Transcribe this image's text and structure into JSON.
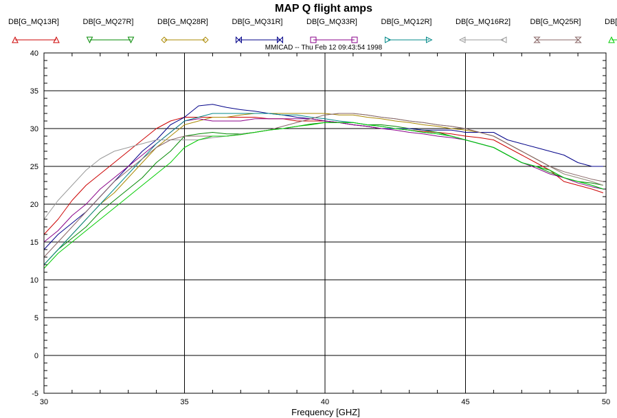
{
  "chart_data": {
    "type": "line",
    "title": "MAP Q flight amps",
    "subtitle": "MMICAD -- Thu Feb 12 09:43:54 1998",
    "xlabel": "Frequency [GHZ]",
    "ylabel": "",
    "xlim": [
      30,
      50
    ],
    "ylim": [
      -5,
      40
    ],
    "x_ticks": [
      "30",
      "35",
      "40",
      "45",
      "50"
    ],
    "y_ticks": [
      "-5",
      "0",
      "5",
      "10",
      "15",
      "20",
      "25",
      "30",
      "35",
      "40"
    ],
    "grid": true,
    "legend_position": "top",
    "series": [
      {
        "name": "DB[G_MQ13R]",
        "color": "#cc0000",
        "marker": "triangle-up",
        "x": [
          30,
          30.5,
          31,
          31.5,
          32,
          32.5,
          33,
          33.5,
          34,
          34.5,
          35,
          35.5,
          36,
          36.5,
          37,
          37.5,
          38,
          38.5,
          39,
          39.5,
          40,
          40.5,
          41,
          41.5,
          42,
          42.5,
          43,
          43.5,
          44,
          44.5,
          45,
          45.5,
          46,
          46.5,
          47,
          47.5,
          48,
          48.5,
          49,
          49.5,
          49.9
        ],
        "y": [
          16,
          18,
          20.5,
          22.5,
          24,
          25.5,
          27,
          28.5,
          30,
          31,
          31.5,
          31.5,
          31.5,
          31.5,
          31.5,
          31.5,
          31.3,
          31.3,
          31,
          31,
          31,
          30.8,
          30.5,
          30.3,
          30,
          30,
          29.8,
          29.6,
          29.5,
          29.3,
          29,
          28.8,
          28.5,
          27.5,
          26.5,
          25.5,
          24.5,
          23,
          22.5,
          22,
          21.5
        ]
      },
      {
        "name": "DB[G_MQ27R]",
        "color": "#008800",
        "marker": "triangle-down",
        "x": [
          30,
          30.5,
          31,
          31.5,
          32,
          32.5,
          33,
          33.5,
          34,
          34.5,
          35,
          35.5,
          36,
          36.5,
          37,
          37.5,
          38,
          38.5,
          39,
          39.5,
          40,
          40.5,
          41,
          41.5,
          42,
          42.5,
          43,
          43.5,
          44,
          44.5,
          45,
          45.5,
          46,
          46.5,
          47,
          47.5,
          48,
          48.5,
          49,
          49.5,
          49.9
        ],
        "y": [
          12,
          14,
          15.5,
          17,
          19,
          20.5,
          22,
          23.5,
          25.5,
          27,
          29,
          29.3,
          29.5,
          29.3,
          29.3,
          29.5,
          29.8,
          30,
          30.3,
          30.6,
          30.8,
          30.8,
          30.8,
          30.5,
          30.5,
          30.3,
          30,
          29.8,
          29.5,
          29,
          28.5,
          28,
          27.5,
          26.5,
          25.5,
          25,
          24.2,
          23.5,
          23,
          22.8,
          22.5
        ]
      },
      {
        "name": "DB[G_MQ28R]",
        "color": "#aa8800",
        "marker": "diamond",
        "x": [
          30,
          30.5,
          31,
          31.5,
          32,
          32.5,
          33,
          33.5,
          34,
          34.5,
          35,
          35.5,
          36,
          36.5,
          37,
          37.5,
          38,
          38.5,
          39,
          39.5,
          40,
          40.5,
          41,
          41.5,
          42,
          42.5,
          43,
          43.5,
          44,
          44.5,
          45,
          45.5,
          46,
          46.5,
          47,
          47.5,
          48,
          48.5,
          49,
          49.5,
          49.9
        ],
        "y": [
          12,
          14,
          16,
          18,
          20,
          21.5,
          23.5,
          25.5,
          27.5,
          29,
          30.5,
          31,
          31.5,
          31.5,
          31.8,
          32,
          32,
          32,
          32,
          32,
          32,
          31.8,
          31.8,
          31.5,
          31.3,
          31,
          30.8,
          30.5,
          30.3,
          30,
          29.8,
          29.5,
          29,
          28,
          27,
          26,
          25,
          24,
          23.5,
          23,
          22.5
        ]
      },
      {
        "name": "DB[G_MQ31R]",
        "color": "#000088",
        "marker": "bowtie",
        "x": [
          30,
          30.5,
          31,
          31.5,
          32,
          32.5,
          33,
          33.5,
          34,
          34.5,
          35,
          35.5,
          36,
          36.5,
          37,
          37.5,
          38,
          38.5,
          39,
          39.5,
          40,
          40.5,
          41,
          41.5,
          42,
          42.5,
          43,
          43.5,
          44,
          44.5,
          45,
          45.5,
          46,
          46.5,
          47,
          47.5,
          48,
          48.5,
          49,
          49.5,
          49.9
        ],
        "y": [
          14,
          16,
          17.5,
          19,
          21,
          23,
          25,
          27,
          28.5,
          30.5,
          31.5,
          33,
          33.2,
          32.8,
          32.5,
          32.3,
          32,
          31.8,
          31.5,
          31.3,
          31,
          30.8,
          30.5,
          30.3,
          30,
          30,
          30,
          29.8,
          29.8,
          29.8,
          29.5,
          29.5,
          29.5,
          28.5,
          28,
          27.5,
          27,
          26.5,
          25.5,
          25,
          25
        ]
      },
      {
        "name": "DB[G_MQ33R]",
        "color": "#880088",
        "marker": "square",
        "x": [
          30,
          30.5,
          31,
          31.5,
          32,
          32.5,
          33,
          33.5,
          34,
          34.5,
          35,
          35.5,
          36,
          36.5,
          37,
          37.5,
          38,
          38.5,
          39,
          39.5,
          40,
          40.5,
          41,
          41.5,
          42,
          42.5,
          43,
          43.5,
          44,
          44.5,
          45,
          45.5,
          46,
          46.5,
          47,
          47.5,
          48,
          48.5,
          49,
          49.5,
          49.9
        ],
        "y": [
          15,
          16.5,
          18.5,
          20,
          22,
          23.5,
          25,
          26.5,
          28,
          29.5,
          31,
          31.3,
          31,
          31,
          31,
          31.3,
          31.3,
          31.3,
          31.3,
          31.3,
          31,
          30.8,
          30.5,
          30.3,
          30,
          29.8,
          29.5,
          29.3,
          29,
          28.8,
          28.5,
          28,
          27.5,
          26.5,
          25.5,
          24.8,
          24,
          23.5,
          22.8,
          22.3,
          22
        ]
      },
      {
        "name": "DB[G_MQ12R]",
        "color": "#008888",
        "marker": "triangle-right",
        "x": [
          30,
          30.5,
          31,
          31.5,
          32,
          32.5,
          33,
          33.5,
          34,
          34.5,
          35,
          35.5,
          36,
          36.5,
          37,
          37.5,
          38,
          38.5,
          39,
          39.5,
          40,
          40.5,
          41,
          41.5,
          42,
          42.5,
          43,
          43.5,
          44,
          44.5,
          45,
          45.5,
          46,
          46.5,
          47,
          47.5,
          48,
          48.5,
          49,
          49.5,
          49.9
        ],
        "y": [
          12,
          14,
          16,
          18,
          20,
          22,
          24,
          26,
          28,
          29.5,
          31,
          31.5,
          32,
          32,
          32,
          32,
          32,
          31.8,
          31.8,
          31.5,
          31.3,
          31,
          30.8,
          30.5,
          30.3,
          30,
          29.8,
          29.5,
          29.3,
          29,
          28.5,
          28,
          27.5,
          26.5,
          25.5,
          25,
          24.5,
          23.5,
          23,
          22.5,
          22
        ]
      },
      {
        "name": "DB[G_MQ16R2]",
        "color": "#999999",
        "marker": "triangle-left",
        "x": [
          30,
          30.5,
          31,
          31.5,
          32,
          32.5,
          33,
          33.5,
          34,
          34.5,
          35,
          35.5,
          36,
          36.5,
          37,
          37.5,
          38,
          38.5,
          39,
          39.5,
          40,
          40.5,
          41,
          41.5,
          42,
          42.5,
          43,
          43.5,
          44,
          44.5,
          45,
          45.5,
          46,
          46.5,
          47,
          47.5,
          48,
          48.5,
          49,
          49.5,
          49.9
        ],
        "y": [
          18,
          20.5,
          22.5,
          24.5,
          26,
          27,
          27.5,
          28,
          28.5,
          28.5,
          28.5,
          28.5,
          28.8,
          29,
          29.3,
          29.5,
          29.8,
          30.3,
          30.8,
          31.3,
          31.8,
          32,
          32,
          31.8,
          31.5,
          31.3,
          31,
          30.8,
          30.5,
          30.3,
          30,
          29.5,
          29,
          28,
          27,
          26,
          25,
          24,
          23.5,
          23,
          22.5
        ]
      },
      {
        "name": "DB[G_MQ25R]",
        "color": "#886666",
        "marker": "hourglass",
        "x": [
          30,
          30.5,
          31,
          31.5,
          32,
          32.5,
          33,
          33.5,
          34,
          34.5,
          35,
          35.5,
          36,
          36.5,
          37,
          37.5,
          38,
          38.5,
          39,
          39.5,
          40,
          40.5,
          41,
          41.5,
          42,
          42.5,
          43,
          43.5,
          44,
          44.5,
          45,
          45.5,
          46,
          46.5,
          47,
          47.5,
          48,
          48.5,
          49,
          49.5,
          49.9
        ],
        "y": [
          13,
          15,
          17,
          19,
          21,
          23,
          24.5,
          26,
          27.5,
          28.5,
          29,
          29,
          29,
          29,
          29.2,
          29.5,
          29.8,
          30.3,
          30.8,
          31.3,
          31.8,
          32,
          32,
          31.8,
          31.5,
          31.3,
          31,
          30.8,
          30.5,
          30.3,
          30,
          29.5,
          29,
          28,
          27,
          26,
          25,
          24.3,
          23.8,
          23.3,
          23
        ]
      },
      {
        "name": "DB[G_MQ",
        "color": "#00cc00",
        "marker": "triangle-up",
        "x": [
          30,
          30.5,
          31,
          31.5,
          32,
          32.5,
          33,
          33.5,
          34,
          34.5,
          35,
          35.5,
          36,
          36.5,
          37,
          37.5,
          38,
          38.5,
          39,
          39.5,
          40,
          40.5,
          41,
          41.5,
          42,
          42.5,
          43,
          43.5,
          44,
          44.5,
          45,
          45.5,
          46,
          46.5,
          47,
          47.5,
          48,
          48.5,
          49,
          49.5,
          49.9
        ],
        "y": [
          11.5,
          13.5,
          15,
          16.5,
          18,
          19.5,
          21,
          22.5,
          24,
          25.5,
          27.5,
          28.5,
          29,
          29,
          29.2,
          29.5,
          29.8,
          30,
          30.3,
          30.5,
          30.8,
          30.8,
          30.8,
          30.5,
          30.3,
          30,
          29.8,
          29.5,
          29.3,
          29,
          28.5,
          28,
          27.5,
          26.5,
          25.5,
          25,
          24.5,
          23.5,
          23,
          22.5,
          22
        ]
      }
    ]
  }
}
